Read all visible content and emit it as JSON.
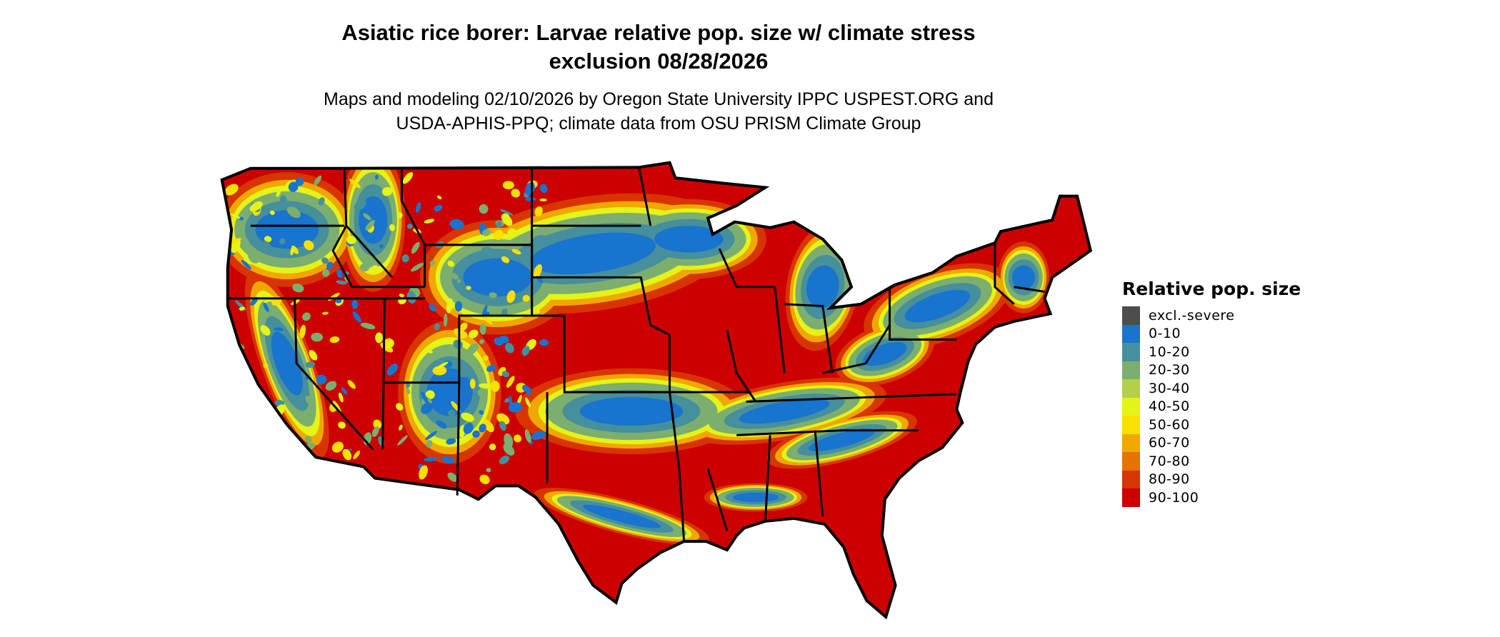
{
  "title": {
    "line1": "Asiatic rice borer: Larvae relative pop. size w/ climate stress",
    "line2": "exclusion 08/28/2026"
  },
  "subtitle": {
    "line1": "Maps and modeling 02/10/2026 by Oregon State University IPPC USPEST.ORG and",
    "line2": "USDA-APHIS-PPQ; climate data from OSU PRISM Climate Group"
  },
  "legend": {
    "title": "Relative pop. size",
    "items": [
      {
        "label": "excl.-severe",
        "color": "#4d4d4d"
      },
      {
        "label": "0-10",
        "color": "#1874cd"
      },
      {
        "label": "10-20",
        "color": "#468f9c"
      },
      {
        "label": "20-30",
        "color": "#7cae6f"
      },
      {
        "label": "30-40",
        "color": "#b2d048"
      },
      {
        "label": "40-50",
        "color": "#e4f318"
      },
      {
        "label": "50-60",
        "color": "#f9e000"
      },
      {
        "label": "60-70",
        "color": "#f0a800"
      },
      {
        "label": "70-80",
        "color": "#e67200"
      },
      {
        "label": "80-90",
        "color": "#d83400"
      },
      {
        "label": "90-100",
        "color": "#cc0000"
      }
    ]
  },
  "map": {
    "region": "conterminous United States",
    "dominant_class": "90-100"
  }
}
